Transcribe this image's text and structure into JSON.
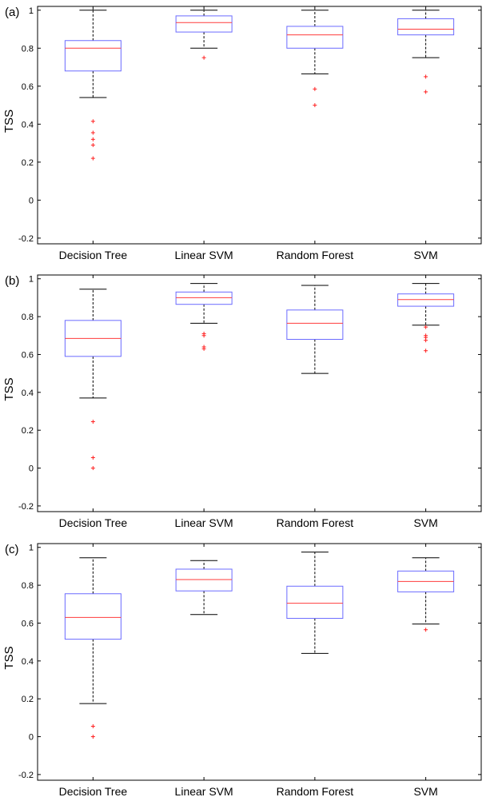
{
  "figure": {
    "colors": {
      "box": "#6b6bff",
      "median": "#ff3b3b",
      "whisker": "#000000",
      "outlier": "#ff2020",
      "axis": "#000000"
    }
  },
  "chart_data": [
    {
      "type": "box",
      "panel_label": "(a)",
      "ylabel": "TSS",
      "xlabel": "",
      "ylim": [
        -0.23,
        1.02
      ],
      "yticks": [
        -0.2,
        0,
        0.2,
        0.4,
        0.6,
        0.8,
        1
      ],
      "ytick_labels": [
        "-0.2",
        "0",
        "0.2",
        "0.4",
        "0.6",
        "0.8",
        "1"
      ],
      "categories": [
        "Decision Tree",
        "Linear SVM",
        "Random Forest",
        "SVM"
      ],
      "boxes": [
        {
          "name": "Decision Tree",
          "whisker_low": 0.54,
          "q1": 0.68,
          "median": 0.8,
          "q3": 0.84,
          "whisker_high": 1.0,
          "outliers": [
            0.415,
            0.355,
            0.32,
            0.29,
            0.22
          ]
        },
        {
          "name": "Linear SVM",
          "whisker_low": 0.8,
          "q1": 0.885,
          "median": 0.935,
          "q3": 0.97,
          "whisker_high": 1.0,
          "outliers": [
            0.75
          ]
        },
        {
          "name": "Random Forest",
          "whisker_low": 0.665,
          "q1": 0.8,
          "median": 0.87,
          "q3": 0.915,
          "whisker_high": 1.0,
          "outliers": [
            0.585,
            0.5
          ]
        },
        {
          "name": "SVM",
          "whisker_low": 0.75,
          "q1": 0.87,
          "median": 0.9,
          "q3": 0.955,
          "whisker_high": 1.0,
          "outliers": [
            0.65,
            0.57
          ]
        }
      ]
    },
    {
      "type": "box",
      "panel_label": "(b)",
      "ylabel": "TSS",
      "xlabel": "",
      "ylim": [
        -0.23,
        1.02
      ],
      "yticks": [
        -0.2,
        0,
        0.2,
        0.4,
        0.6,
        0.8,
        1
      ],
      "ytick_labels": [
        "-0.2",
        "0",
        "0.2",
        "0.4",
        "0.6",
        "0.8",
        "1"
      ],
      "categories": [
        "Decision Tree",
        "Linear SVM",
        "Random Forest",
        "SVM"
      ],
      "boxes": [
        {
          "name": "Decision Tree",
          "whisker_low": 0.37,
          "q1": 0.59,
          "median": 0.685,
          "q3": 0.78,
          "whisker_high": 0.945,
          "outliers": [
            0.245,
            0.055,
            0.0
          ]
        },
        {
          "name": "Linear SVM",
          "whisker_low": 0.765,
          "q1": 0.865,
          "median": 0.9,
          "q3": 0.93,
          "whisker_high": 0.975,
          "outliers": [
            0.71,
            0.7,
            0.64,
            0.63
          ]
        },
        {
          "name": "Random Forest",
          "whisker_low": 0.5,
          "q1": 0.68,
          "median": 0.765,
          "q3": 0.835,
          "whisker_high": 0.965,
          "outliers": []
        },
        {
          "name": "SVM",
          "whisker_low": 0.755,
          "q1": 0.855,
          "median": 0.89,
          "q3": 0.92,
          "whisker_high": 0.975,
          "outliers": [
            0.745,
            0.7,
            0.69,
            0.675,
            0.62
          ]
        }
      ]
    },
    {
      "type": "box",
      "panel_label": "(c)",
      "ylabel": "TSS",
      "xlabel": "",
      "ylim": [
        -0.23,
        1.02
      ],
      "yticks": [
        -0.2,
        0,
        0.2,
        0.4,
        0.6,
        0.8,
        1
      ],
      "ytick_labels": [
        "-0.2",
        "0",
        "0.2",
        "0.4",
        "0.6",
        "0.8",
        "1"
      ],
      "categories": [
        "Decision Tree",
        "Linear SVM",
        "Random Forest",
        "SVM"
      ],
      "boxes": [
        {
          "name": "Decision Tree",
          "whisker_low": 0.175,
          "q1": 0.515,
          "median": 0.63,
          "q3": 0.755,
          "whisker_high": 0.945,
          "outliers": [
            0.055,
            0.0
          ]
        },
        {
          "name": "Linear SVM",
          "whisker_low": 0.645,
          "q1": 0.77,
          "median": 0.83,
          "q3": 0.885,
          "whisker_high": 0.93,
          "outliers": []
        },
        {
          "name": "Random Forest",
          "whisker_low": 0.44,
          "q1": 0.625,
          "median": 0.705,
          "q3": 0.795,
          "whisker_high": 0.975,
          "outliers": []
        },
        {
          "name": "SVM",
          "whisker_low": 0.595,
          "q1": 0.765,
          "median": 0.82,
          "q3": 0.875,
          "whisker_high": 0.945,
          "outliers": [
            0.565
          ]
        }
      ]
    }
  ]
}
